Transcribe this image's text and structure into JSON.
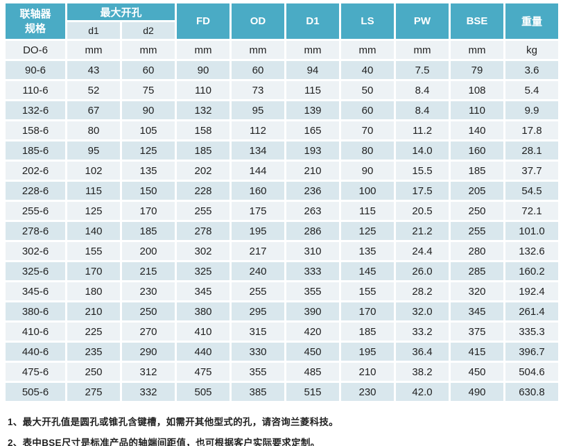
{
  "colors": {
    "header_bg": "#4AABC5",
    "row_dark": "#D9E7ED",
    "row_light": "#EDF2F5"
  },
  "table": {
    "header": {
      "spec_line1": "联轴器",
      "spec_line2": "规格",
      "max_bore": "最大开孔",
      "sub_d1": "d1",
      "sub_d2": "d2",
      "cols": [
        "FD",
        "OD",
        "D1",
        "LS",
        "PW",
        "BSE",
        "重量"
      ]
    },
    "body_rows": [
      {
        "cells": [
          "DO-6",
          "mm",
          "mm",
          "mm",
          "mm",
          "mm",
          "mm",
          "mm",
          "mm",
          "kg"
        ]
      },
      {
        "cells": [
          "90-6",
          "43",
          "60",
          "90",
          "60",
          "94",
          "40",
          "7.5",
          "79",
          "3.6"
        ]
      },
      {
        "cells": [
          "110-6",
          "52",
          "75",
          "110",
          "73",
          "115",
          "50",
          "8.4",
          "108",
          "5.4"
        ]
      },
      {
        "cells": [
          "132-6",
          "67",
          "90",
          "132",
          "95",
          "139",
          "60",
          "8.4",
          "110",
          "9.9"
        ]
      },
      {
        "cells": [
          "158-6",
          "80",
          "105",
          "158",
          "112",
          "165",
          "70",
          "11.2",
          "140",
          "17.8"
        ]
      },
      {
        "cells": [
          "185-6",
          "95",
          "125",
          "185",
          "134",
          "193",
          "80",
          "14.0",
          "160",
          "28.1"
        ]
      },
      {
        "cells": [
          "202-6",
          "102",
          "135",
          "202",
          "144",
          "210",
          "90",
          "15.5",
          "185",
          "37.7"
        ]
      },
      {
        "cells": [
          "228-6",
          "115",
          "150",
          "228",
          "160",
          "236",
          "100",
          "17.5",
          "205",
          "54.5"
        ]
      },
      {
        "cells": [
          "255-6",
          "125",
          "170",
          "255",
          "175",
          "263",
          "115",
          "20.5",
          "250",
          "72.1"
        ]
      },
      {
        "cells": [
          "278-6",
          "140",
          "185",
          "278",
          "195",
          "286",
          "125",
          "21.2",
          "255",
          "101.0"
        ]
      },
      {
        "cells": [
          "302-6",
          "155",
          "200",
          "302",
          "217",
          "310",
          "135",
          "24.4",
          "280",
          "132.6"
        ]
      },
      {
        "cells": [
          "325-6",
          "170",
          "215",
          "325",
          "240",
          "333",
          "145",
          "26.0",
          "285",
          "160.2"
        ]
      },
      {
        "cells": [
          "345-6",
          "180",
          "230",
          "345",
          "255",
          "355",
          "155",
          "28.2",
          "320",
          "192.4"
        ]
      },
      {
        "cells": [
          "380-6",
          "210",
          "250",
          "380",
          "295",
          "390",
          "170",
          "32.0",
          "345",
          "261.4"
        ]
      },
      {
        "cells": [
          "410-6",
          "225",
          "270",
          "410",
          "315",
          "420",
          "185",
          "33.2",
          "375",
          "335.3"
        ]
      },
      {
        "cells": [
          "440-6",
          "235",
          "290",
          "440",
          "330",
          "450",
          "195",
          "36.4",
          "415",
          "396.7"
        ]
      },
      {
        "cells": [
          "475-6",
          "250",
          "312",
          "475",
          "355",
          "485",
          "210",
          "38.2",
          "450",
          "504.6"
        ]
      },
      {
        "cells": [
          "505-6",
          "275",
          "332",
          "505",
          "385",
          "515",
          "230",
          "42.0",
          "490",
          "630.8"
        ]
      }
    ]
  },
  "notes": [
    "1、最大开孔值是圆孔或锥孔含键槽，如需开其他型式的孔，请咨询兰菱科技。",
    "2、表中BSE尺寸是标准产品的轴端间距值，也可根据客户实际要求定制。"
  ]
}
